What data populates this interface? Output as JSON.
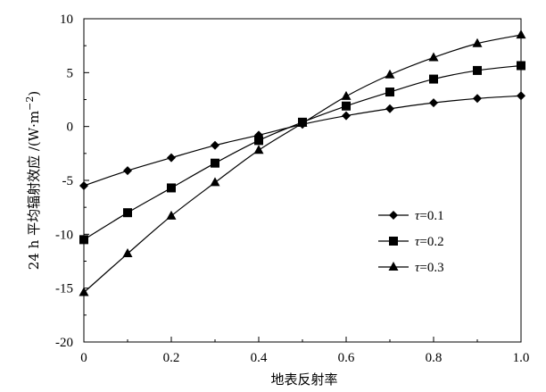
{
  "chart_data": {
    "type": "line",
    "xlabel": "地表反射率",
    "ylabel_main": "24 h 平均辐射效应 /(W·m",
    "ylabel_sup": "−2",
    "ylabel_end": ")",
    "xlim": [
      0,
      1.0
    ],
    "ylim": [
      -20,
      10
    ],
    "xticks": [
      0,
      0.2,
      0.4,
      0.6,
      0.8,
      1.0
    ],
    "xtick_labels": [
      "0",
      "0.2",
      "0.4",
      "0.6",
      "0.8",
      "1.0"
    ],
    "yticks": [
      10,
      5,
      0,
      -5,
      -10,
      -15,
      -20
    ],
    "ytick_labels": [
      "10",
      "5",
      "0",
      "-5",
      "-10",
      "-15",
      "-20"
    ],
    "grid": false,
    "legend_position": "right",
    "x": [
      0,
      0.1,
      0.2,
      0.3,
      0.4,
      0.5,
      0.6,
      0.7,
      0.8,
      0.9,
      1.0
    ],
    "series": [
      {
        "name": "τ=0.1",
        "name_symbol": "τ",
        "name_value": "=0.1",
        "marker": "diamond",
        "color": "#000000",
        "values": [
          -5.5,
          -4.1,
          -2.9,
          -1.75,
          -0.8,
          0.2,
          1.0,
          1.65,
          2.2,
          2.6,
          2.85
        ]
      },
      {
        "name": "τ=0.2",
        "name_symbol": "τ",
        "name_value": "=0.2",
        "marker": "square",
        "color": "#000000",
        "values": [
          -10.5,
          -8.0,
          -5.7,
          -3.4,
          -1.3,
          0.4,
          1.9,
          3.2,
          4.4,
          5.2,
          5.65
        ]
      },
      {
        "name": "τ=0.3",
        "name_symbol": "τ",
        "name_value": "=0.3",
        "marker": "triangle",
        "color": "#000000",
        "values": [
          -15.4,
          -11.8,
          -8.3,
          -5.2,
          -2.2,
          0.3,
          2.8,
          4.8,
          6.4,
          7.7,
          8.5
        ]
      }
    ]
  }
}
